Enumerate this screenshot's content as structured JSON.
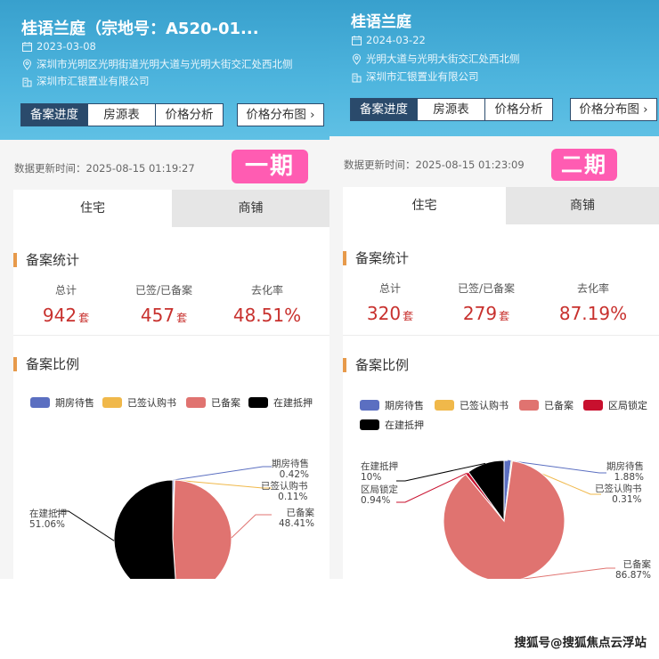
{
  "panels": [
    {
      "title": "桂语兰庭（宗地号：A520-01...",
      "date": "2023-03-08",
      "address": "深圳市光明区光明街道光明大道与光明大街交汇处西北侧",
      "developer": "深圳市汇银置业有限公司",
      "tabs": [
        "备案进度",
        "房源表",
        "价格分析"
      ],
      "active_tab": "备案进度",
      "dist_button": "价格分布图",
      "updated_label": "数据更新时间：",
      "updated_time": "2025-08-15 01:19:27",
      "phase": "一期",
      "product_tabs": [
        "住宅",
        "商铺"
      ],
      "stats_title": "备案统计",
      "stats": [
        {
          "label": "总计",
          "value": "942",
          "unit": "套"
        },
        {
          "label": "已签/已备案",
          "value": "457",
          "unit": "套"
        },
        {
          "label": "去化率",
          "value": "48.51%",
          "unit": ""
        }
      ],
      "ratio_title": "备案比例",
      "chart_data": {
        "type": "pie",
        "title": "",
        "legend": [
          "期房待售",
          "已签认购书",
          "已备案",
          "在建抵押"
        ],
        "slices": [
          {
            "name": "期房待售",
            "value": 0.42,
            "label": "0.42%",
            "color": "#5b6fc1"
          },
          {
            "name": "已签认购书",
            "value": 0.11,
            "label": "0.11%",
            "color": "#f0b84a"
          },
          {
            "name": "已备案",
            "value": 48.41,
            "label": "48.41%",
            "color": "#e07370"
          },
          {
            "name": "在建抵押",
            "value": 51.06,
            "label": "51.06%",
            "color": "#000000"
          }
        ]
      }
    },
    {
      "title": "桂语兰庭",
      "date": "2024-03-22",
      "address": "光明大道与光明大街交汇处西北侧",
      "developer": "深圳市汇银置业有限公司",
      "tabs": [
        "备案进度",
        "房源表",
        "价格分析"
      ],
      "active_tab": "备案进度",
      "dist_button": "价格分布图",
      "updated_label": "数据更新时间：",
      "updated_time": "2025-08-15 01:23:09",
      "phase": "二期",
      "product_tabs": [
        "住宅",
        "商铺"
      ],
      "stats_title": "备案统计",
      "stats": [
        {
          "label": "总计",
          "value": "320",
          "unit": "套"
        },
        {
          "label": "已签/已备案",
          "value": "279",
          "unit": "套"
        },
        {
          "label": "去化率",
          "value": "87.19%",
          "unit": ""
        }
      ],
      "ratio_title": "备案比例",
      "chart_data": {
        "type": "pie",
        "title": "",
        "legend": [
          "期房待售",
          "已签认购书",
          "已备案",
          "区局锁定",
          "在建抵押"
        ],
        "slices": [
          {
            "name": "期房待售",
            "value": 1.88,
            "label": "1.88%",
            "color": "#5b6fc1"
          },
          {
            "name": "已签认购书",
            "value": 0.31,
            "label": "0.31%",
            "color": "#f0b84a"
          },
          {
            "name": "已备案",
            "value": 86.87,
            "label": "86.87%",
            "color": "#e07370"
          },
          {
            "name": "区局锁定",
            "value": 0.94,
            "label": "0.94%",
            "color": "#c8102e"
          },
          {
            "name": "在建抵押",
            "value": 10,
            "label": "10%",
            "color": "#000000"
          }
        ]
      }
    }
  ],
  "watermark": "搜狐号@搜狐焦点云浮站"
}
